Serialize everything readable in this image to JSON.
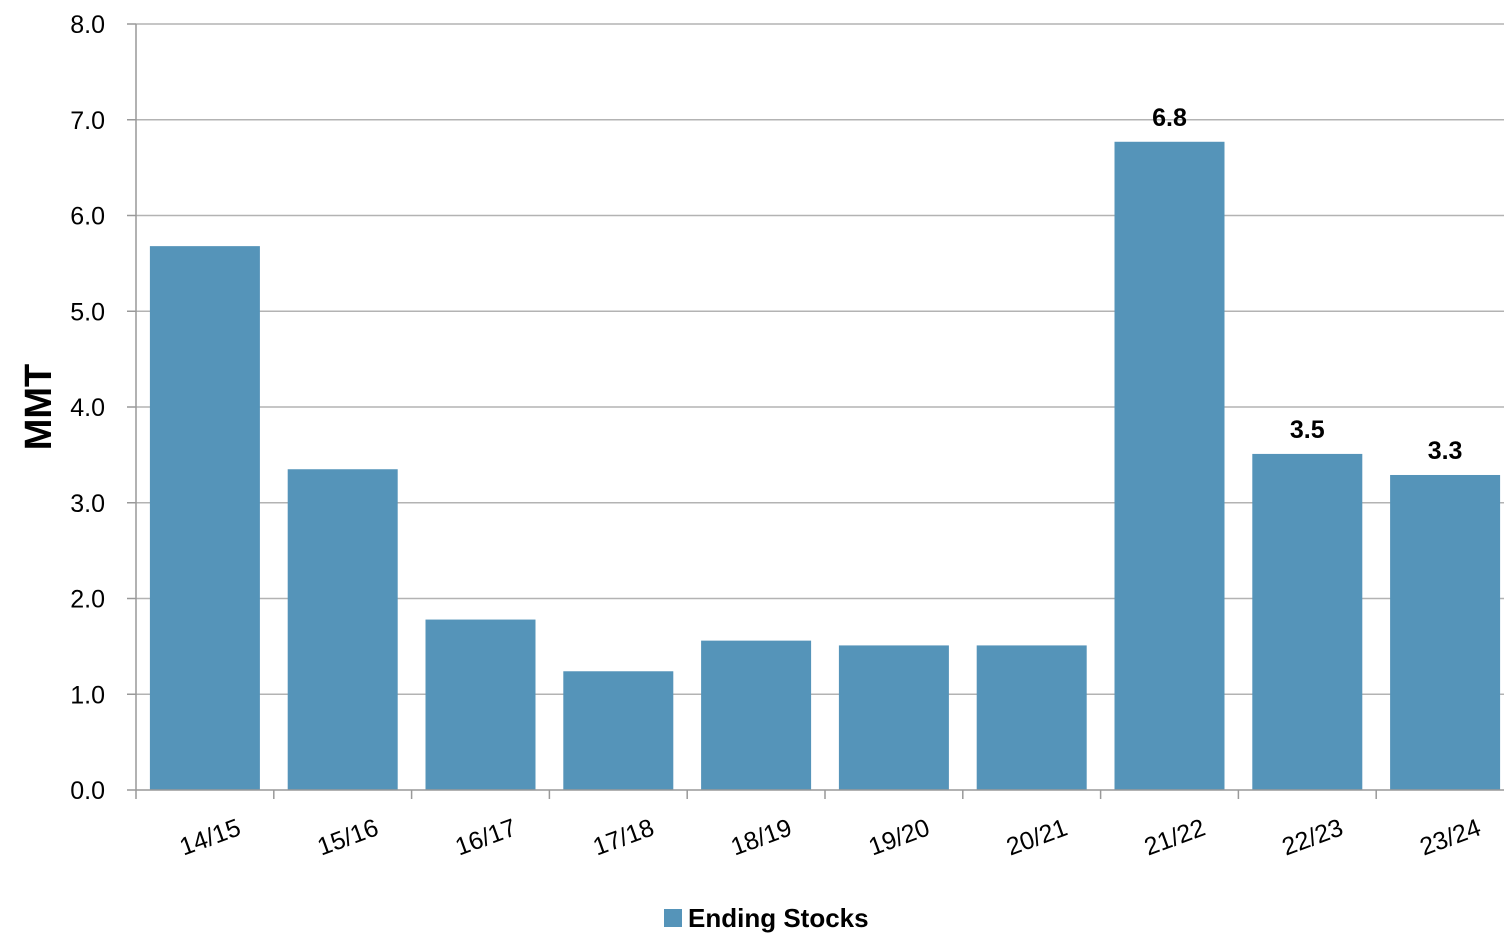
{
  "chart_data": {
    "type": "bar",
    "categories": [
      "14/15",
      "15/16",
      "16/17",
      "17/18",
      "18/19",
      "19/20",
      "20/21",
      "21/22",
      "22/23",
      "23/24"
    ],
    "series": [
      {
        "name": "Ending Stocks",
        "values": [
          5.68,
          3.35,
          1.78,
          1.24,
          1.56,
          1.51,
          1.51,
          6.77,
          3.51,
          3.29
        ],
        "color": "#5594b9"
      }
    ],
    "data_labels": [
      "",
      "",
      "",
      "",
      "",
      "",
      "",
      "6.8",
      "3.5",
      "3.3"
    ],
    "ylabel": "MMT",
    "xlabel": "",
    "ylim": [
      0,
      8
    ],
    "y_ticks": [
      "0.0",
      "1.0",
      "2.0",
      "3.0",
      "4.0",
      "5.0",
      "6.0",
      "7.0",
      "8.0"
    ],
    "grid": true,
    "grid_color": "#b3b3b3",
    "legend_position": "bottom"
  }
}
